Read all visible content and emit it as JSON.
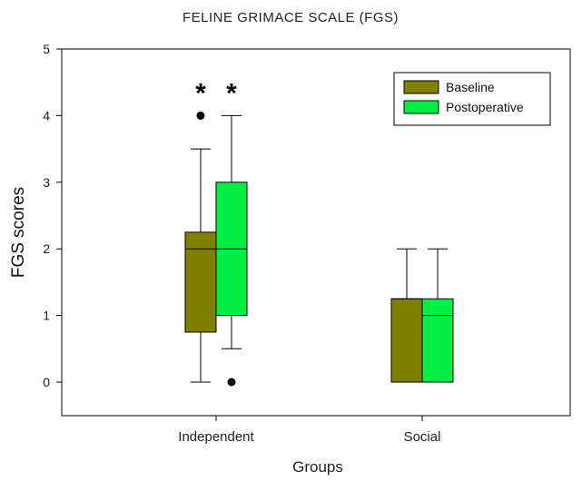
{
  "chart_data": {
    "type": "boxplot",
    "title": "FELINE GRIMACE SCALE (FGS)",
    "xlabel": "Groups",
    "ylabel": "FGS scores",
    "ylim": [
      0,
      5
    ],
    "yticks": [
      0,
      1,
      2,
      3,
      4,
      5
    ],
    "categories": [
      "Independent",
      "Social"
    ],
    "legend_position": "top-right",
    "series": [
      {
        "name": "Baseline",
        "color": "#808000",
        "boxes": [
          {
            "category": "Independent",
            "q1": 0.75,
            "median": 2.0,
            "q3": 2.25,
            "whisker_low": 0.0,
            "whisker_high": 3.5,
            "outliers": [
              4.0
            ]
          },
          {
            "category": "Social",
            "q1": 0.0,
            "median": 1.25,
            "q3": 1.25,
            "whisker_low": 0.0,
            "whisker_high": 2.0,
            "outliers": []
          }
        ]
      },
      {
        "name": "Postoperative",
        "color": "#00ee44",
        "boxes": [
          {
            "category": "Independent",
            "q1": 1.0,
            "median": 2.0,
            "q3": 3.0,
            "whisker_low": 0.5,
            "whisker_high": 4.0,
            "outliers": [
              0.0
            ]
          },
          {
            "category": "Social",
            "q1": 0.0,
            "median": 1.0,
            "q3": 1.25,
            "whisker_low": 0.0,
            "whisker_high": 2.0,
            "outliers": []
          }
        ]
      }
    ],
    "annotations": [
      {
        "text": "*",
        "category": "Independent",
        "series": "Baseline",
        "y": 4.45
      },
      {
        "text": "*",
        "category": "Independent",
        "series": "Postoperative",
        "y": 4.45
      }
    ]
  }
}
